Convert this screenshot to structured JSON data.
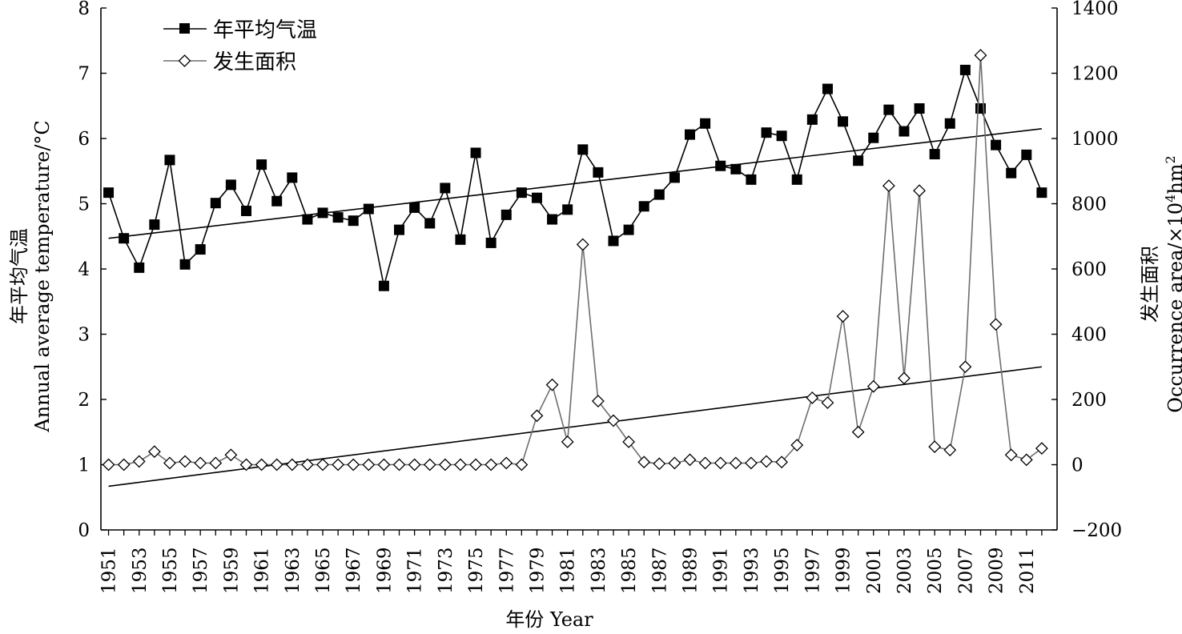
{
  "chart_data": {
    "type": "line",
    "xlabel": "年份 Year",
    "ylabel_left": [
      "年平均气温",
      "Annual average temperature/°C"
    ],
    "ylabel_right": [
      "发生面积",
      "Occurrence area/×10",
      "4",
      "hm",
      "2"
    ],
    "y_left_range": [
      0,
      8
    ],
    "y_left_ticks": [
      "0",
      "1",
      "2",
      "3",
      "4",
      "5",
      "6",
      "7",
      "8"
    ],
    "y_right_range": [
      -200,
      1400
    ],
    "y_right_ticks": [
      "−200",
      "0",
      "200",
      "400",
      "600",
      "800",
      "1000",
      "1200",
      "1400"
    ],
    "x_tick_labels": [
      "1951",
      "1953",
      "1955",
      "1957",
      "1959",
      "1961",
      "1963",
      "1965",
      "1967",
      "1969",
      "1971",
      "1973",
      "1975",
      "1977",
      "1979",
      "1981",
      "1983",
      "1985",
      "1987",
      "1989",
      "1991",
      "1993",
      "1995",
      "1997",
      "1999",
      "2001",
      "2003",
      "2005",
      "2007",
      "2009",
      "2011"
    ],
    "years": [
      1951,
      1952,
      1953,
      1954,
      1955,
      1956,
      1957,
      1958,
      1959,
      1960,
      1961,
      1962,
      1963,
      1964,
      1965,
      1966,
      1967,
      1968,
      1969,
      1970,
      1971,
      1972,
      1973,
      1974,
      1975,
      1976,
      1977,
      1978,
      1979,
      1980,
      1981,
      1982,
      1983,
      1984,
      1985,
      1986,
      1987,
      1988,
      1989,
      1990,
      1991,
      1992,
      1993,
      1994,
      1995,
      1996,
      1997,
      1998,
      1999,
      2000,
      2001,
      2002,
      2003,
      2004,
      2005,
      2006,
      2007,
      2008,
      2009,
      2010,
      2011,
      2012
    ],
    "grid": false,
    "legend_position": "top-left",
    "series": [
      {
        "name": "年平均气温",
        "axis": "left",
        "marker": "filled-square",
        "color": "#000000",
        "values": [
          5.17,
          4.47,
          4.02,
          4.68,
          5.67,
          4.07,
          4.3,
          5.01,
          5.29,
          4.89,
          5.6,
          5.04,
          5.4,
          4.76,
          4.86,
          4.79,
          4.74,
          4.92,
          3.74,
          4.6,
          4.94,
          4.7,
          5.24,
          4.45,
          5.78,
          4.4,
          4.83,
          5.17,
          5.09,
          4.76,
          4.91,
          5.83,
          5.48,
          4.43,
          4.6,
          4.96,
          5.14,
          5.4,
          6.06,
          6.23,
          5.58,
          5.53,
          5.37,
          6.09,
          6.04,
          5.37,
          6.29,
          6.76,
          6.26,
          5.66,
          6.01,
          6.44,
          6.11,
          6.46,
          5.76,
          6.23,
          7.05,
          6.46,
          5.9,
          5.47,
          5.75,
          5.17
        ],
        "trend": [
          4.47,
          6.15
        ]
      },
      {
        "name": "发生面积",
        "axis": "right",
        "marker": "open-diamond",
        "color": "#6e6e6e",
        "values": [
          0,
          0,
          10,
          40,
          5,
          10,
          5,
          5,
          30,
          0,
          0,
          0,
          0,
          0,
          0,
          0,
          0,
          0,
          0,
          0,
          0,
          0,
          0,
          0,
          0,
          0,
          5,
          0,
          150,
          245,
          70,
          675,
          195,
          135,
          70,
          8,
          3,
          5,
          15,
          5,
          5,
          5,
          5,
          10,
          8,
          60,
          205,
          190,
          455,
          100,
          240,
          855,
          265,
          840,
          55,
          45,
          300,
          1255,
          430,
          30,
          15,
          50
        ],
        "trend": [
          -66,
          300
        ]
      }
    ]
  }
}
